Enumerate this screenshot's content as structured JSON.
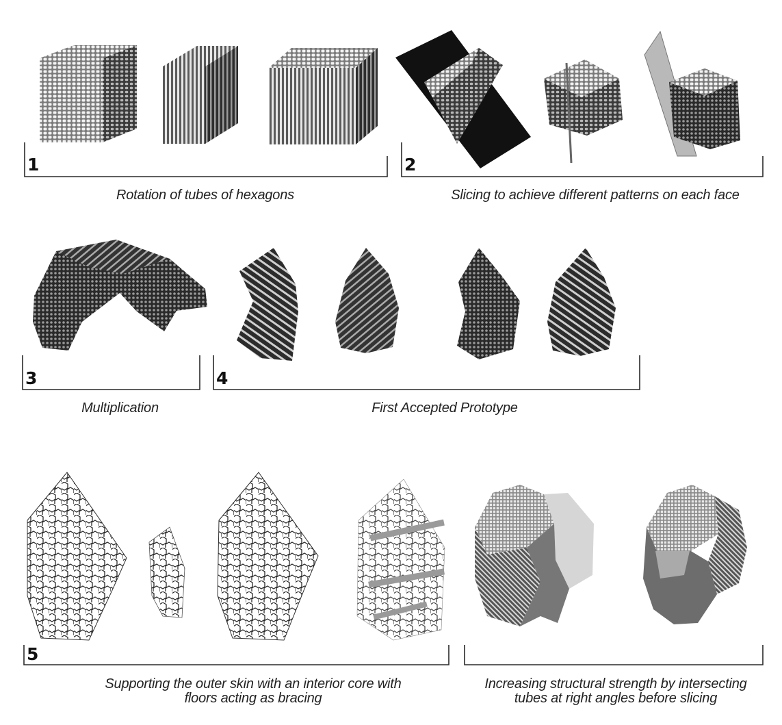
{
  "sections": [
    {
      "number": "1",
      "caption": "Rotation of tubes of hexagons"
    },
    {
      "number": "2",
      "caption": "Slicing to achieve different patterns on each face"
    },
    {
      "number": "3",
      "caption": "Multiplication"
    },
    {
      "number": "4",
      "caption": "First Accepted Prototype"
    },
    {
      "number": "5",
      "caption_lines": [
        "Supporting the outer skin with an interior core with",
        "floors acting as bracing"
      ]
    },
    {
      "number": "",
      "caption_lines": [
        "Increasing structural strength by intersecting",
        "tubes at right angles before slicing"
      ]
    }
  ]
}
